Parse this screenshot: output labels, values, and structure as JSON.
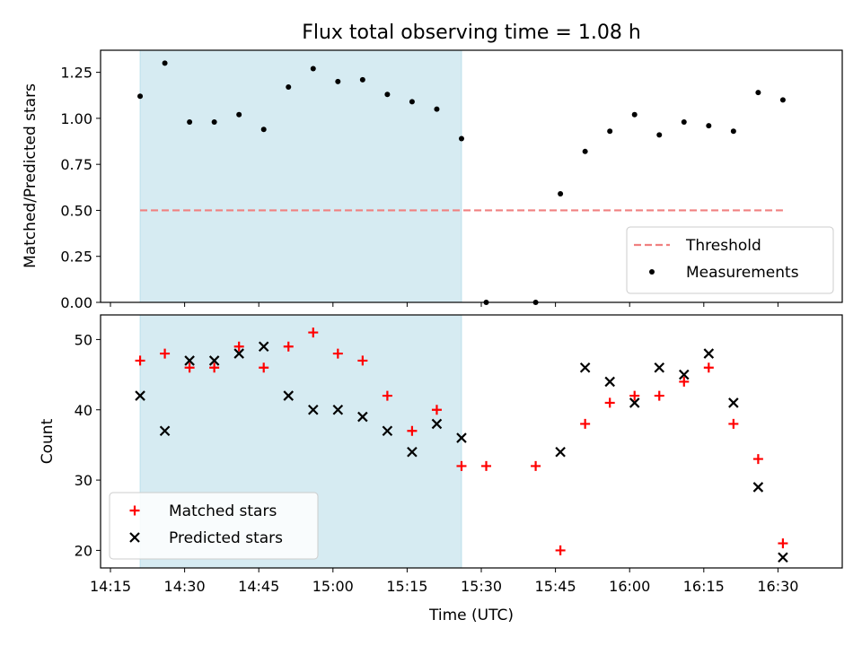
{
  "chart_data": {
    "type": "scatter",
    "title": "Flux total observing time = 1.08 h",
    "xlabel": "Time (UTC)",
    "x_ticks": [
      "14:15",
      "14:30",
      "14:45",
      "15:00",
      "15:15",
      "15:30",
      "15:45",
      "16:00",
      "16:15",
      "16:30"
    ],
    "xlim": [
      "14:13",
      "16:43"
    ],
    "shaded_interval": [
      "14:21",
      "15:26"
    ],
    "colors": {
      "shade": "#add8e6",
      "threshold": "#f08080",
      "measurements": "#000000",
      "matched": "#ff0000",
      "predicted": "#000000"
    },
    "panels": [
      {
        "ylabel": "Matched/Predicted stars",
        "ylim": [
          0,
          1.37
        ],
        "y_ticks": [
          "0.00",
          "0.25",
          "0.50",
          "0.75",
          "1.00",
          "1.25"
        ],
        "y_tick_values": [
          0,
          0.25,
          0.5,
          0.75,
          1.0,
          1.25
        ],
        "legend_position": "lower right",
        "threshold": {
          "name": "Threshold",
          "value": 0.5,
          "x_range": [
            "14:21",
            "16:31"
          ]
        },
        "series": [
          {
            "name": "Measurements",
            "marker": "dot",
            "x": [
              "14:21",
              "14:26",
              "14:31",
              "14:36",
              "14:41",
              "14:46",
              "14:51",
              "14:56",
              "15:01",
              "15:06",
              "15:11",
              "15:16",
              "15:21",
              "15:26",
              "15:31",
              "15:41",
              "15:46",
              "15:51",
              "15:56",
              "16:01",
              "16:06",
              "16:11",
              "16:16",
              "16:21",
              "16:26",
              "16:31"
            ],
            "y": [
              1.12,
              1.3,
              0.98,
              0.98,
              1.02,
              0.94,
              1.17,
              1.27,
              1.2,
              1.21,
              1.13,
              1.09,
              1.05,
              0.89,
              0.0,
              0.0,
              0.59,
              0.82,
              0.93,
              1.02,
              0.91,
              0.98,
              0.96,
              0.93,
              1.14,
              1.1
            ]
          }
        ]
      },
      {
        "ylabel": "Count",
        "ylim": [
          17.5,
          53.5
        ],
        "y_ticks": [
          "20",
          "30",
          "40",
          "50"
        ],
        "y_tick_values": [
          20,
          30,
          40,
          50
        ],
        "legend_position": "lower left",
        "series": [
          {
            "name": "Matched stars",
            "marker": "plus",
            "x": [
              "14:21",
              "14:26",
              "14:31",
              "14:36",
              "14:41",
              "14:46",
              "14:51",
              "14:56",
              "15:01",
              "15:06",
              "15:11",
              "15:16",
              "15:21",
              "15:26",
              "15:31",
              "15:41",
              "15:46",
              "15:51",
              "15:56",
              "16:01",
              "16:06",
              "16:11",
              "16:16",
              "16:21",
              "16:26",
              "16:31"
            ],
            "y": [
              47,
              48,
              46,
              46,
              49,
              46,
              49,
              51,
              48,
              47,
              42,
              37,
              40,
              32,
              32,
              32,
              20,
              38,
              41,
              42,
              42,
              44,
              46,
              38,
              33,
              21
            ]
          },
          {
            "name": "Predicted stars",
            "marker": "x",
            "x": [
              "14:21",
              "14:26",
              "14:31",
              "14:36",
              "14:41",
              "14:46",
              "14:51",
              "14:56",
              "15:01",
              "15:06",
              "15:11",
              "15:16",
              "15:21",
              "15:26",
              "15:46",
              "15:51",
              "15:56",
              "16:01",
              "16:06",
              "16:11",
              "16:16",
              "16:21",
              "16:26",
              "16:31"
            ],
            "y": [
              42,
              37,
              47,
              47,
              48,
              49,
              42,
              40,
              40,
              39,
              37,
              34,
              38,
              36,
              34,
              46,
              44,
              41,
              46,
              45,
              48,
              41,
              29,
              19
            ]
          }
        ]
      }
    ]
  }
}
